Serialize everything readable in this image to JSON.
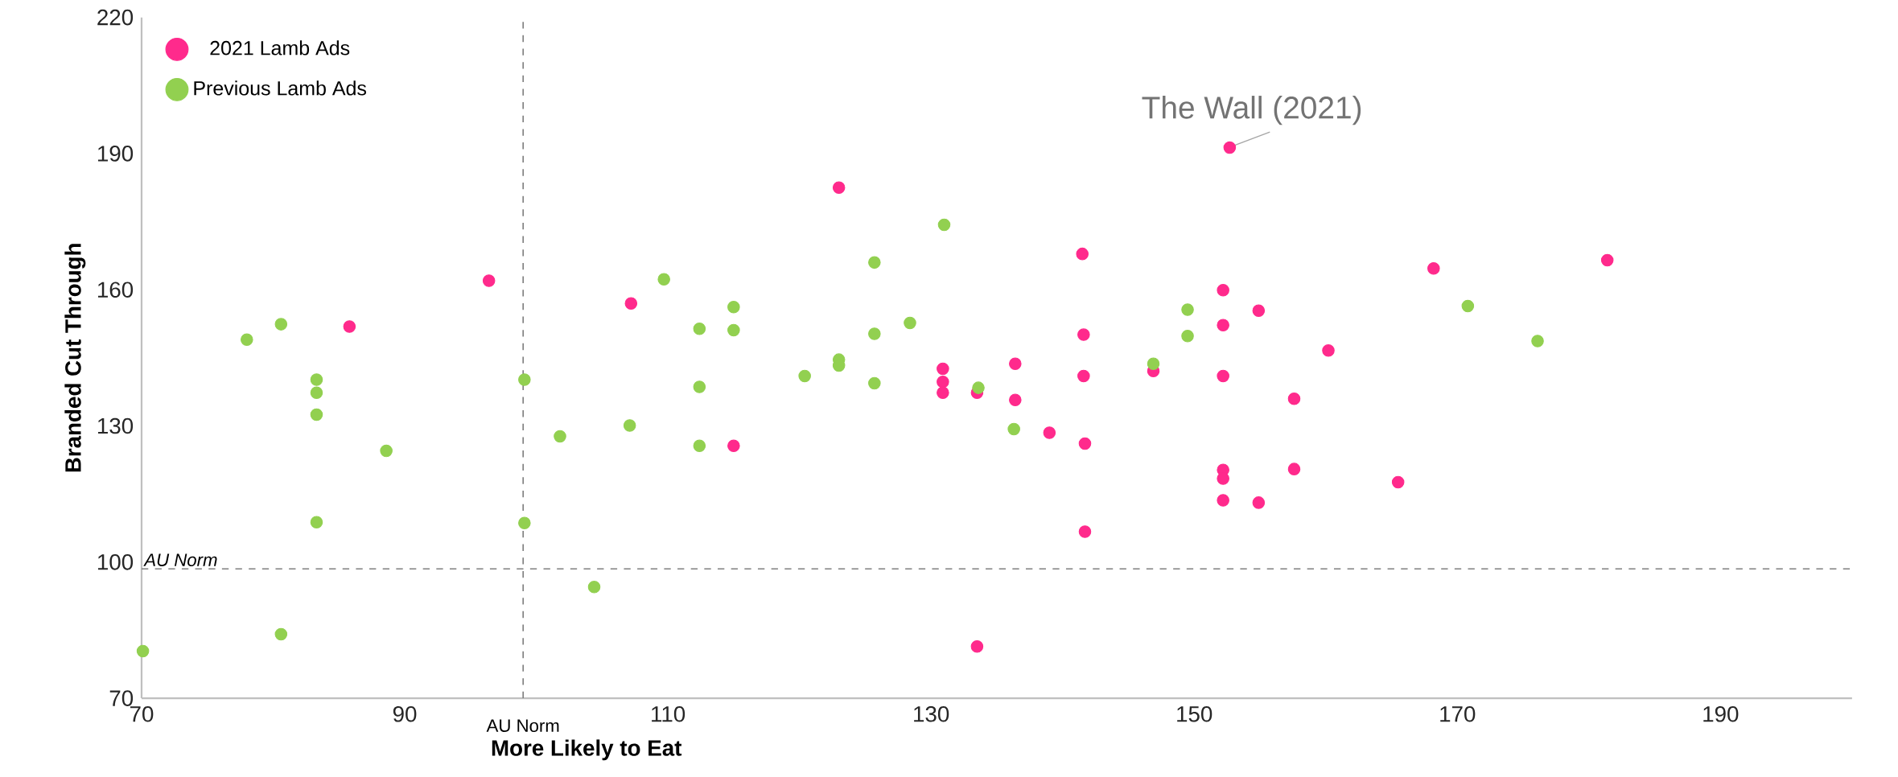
{
  "chart_data": {
    "type": "scatter",
    "xlabel": "More Likely to Eat",
    "ylabel": "Branded Cut Through",
    "xlim": [
      70,
      200
    ],
    "xticks": [
      70,
      90,
      110,
      130,
      150,
      170,
      190
    ],
    "ylim": [
      70,
      220
    ],
    "yticks": [
      70,
      100,
      130,
      160,
      190,
      220
    ],
    "grid": false,
    "legend": "top left",
    "marker": "circle",
    "series": [
      {
        "name": "2021 Lamb Ads",
        "color": "#ff2a8c",
        "x": [
          152.7,
          123.0,
          96.4,
          85.8,
          107.2,
          115.0,
          130.9,
          130.9,
          130.9,
          133.5,
          136.4,
          136.4,
          139.0,
          141.7,
          141.7,
          133.5,
          141.5,
          141.6,
          141.6,
          146.9,
          152.2,
          152.2,
          152.2,
          152.2,
          152.2,
          152.2,
          154.9,
          154.9,
          157.6,
          157.6,
          160.2,
          165.5,
          168.2,
          181.4
        ],
        "values": [
          191.3,
          182.5,
          162.0,
          151.9,
          157.0,
          125.6,
          142.6,
          139.7,
          137.3,
          137.3,
          143.7,
          135.7,
          128.5,
          126.1,
          106.7,
          81.4,
          167.9,
          150.1,
          141.0,
          142.1,
          159.9,
          152.2,
          141.0,
          120.3,
          118.4,
          113.6,
          155.4,
          113.1,
          136.0,
          120.5,
          146.6,
          117.6,
          164.7,
          166.5
        ]
      },
      {
        "name": "Previous Lamb Ads",
        "color": "#92d050",
        "x": [
          70.1,
          78.0,
          80.6,
          80.6,
          83.3,
          83.3,
          83.3,
          83.3,
          88.6,
          99.1,
          99.1,
          101.8,
          104.4,
          107.1,
          109.7,
          112.4,
          112.4,
          112.4,
          115.0,
          115.0,
          120.4,
          123.0,
          123.0,
          125.7,
          125.7,
          125.7,
          128.4,
          131.0,
          133.6,
          136.3,
          146.9,
          149.5,
          149.5,
          170.8,
          176.1
        ],
        "values": [
          80.4,
          149.0,
          152.4,
          84.1,
          140.2,
          137.3,
          132.5,
          108.8,
          124.5,
          140.2,
          108.6,
          127.7,
          94.5,
          130.1,
          162.3,
          151.4,
          138.6,
          125.6,
          156.2,
          151.1,
          141.0,
          144.6,
          143.3,
          166.0,
          150.3,
          139.4,
          152.7,
          174.3,
          138.4,
          129.3,
          143.7,
          155.6,
          149.8,
          156.4,
          148.7
        ]
      }
    ],
    "ref_lines": [
      {
        "axis": "x",
        "value": 99,
        "label": "AU Norm",
        "color": "#7f7f7f",
        "line_style": "dashed"
      },
      {
        "axis": "y",
        "value": 98.5,
        "label": "AU Norm",
        "color": "#7f7f7f",
        "line_style": "dashed"
      }
    ],
    "annotations": [
      {
        "text": "The Wall (2021)",
        "x": 152.7,
        "y": 191.3
      }
    ]
  }
}
